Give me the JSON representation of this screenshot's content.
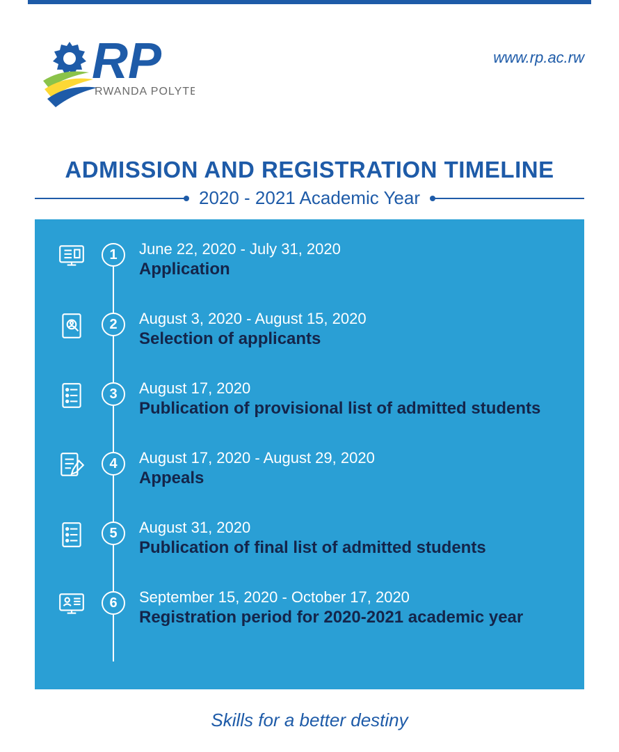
{
  "header": {
    "org_name": "RWANDA POLYTECHNIC",
    "url": "www.rp.ac.rw",
    "logo_colors": {
      "blue": "#1e5ba8",
      "green": "#8bc34a",
      "yellow": "#fdd835"
    }
  },
  "title": {
    "main": "ADMISSION AND REGISTRATION TIMELINE",
    "subtitle": "2020 - 2021 Academic Year"
  },
  "timeline": {
    "background_color": "#2a9fd5",
    "line_color": "#ffffff",
    "label_color": "#14254a",
    "date_color": "#ffffff",
    "items": [
      {
        "num": "1",
        "date": "June 22, 2020 - July 31, 2020",
        "label": "Application",
        "icon": "monitor-form"
      },
      {
        "num": "2",
        "date": "August 3, 2020 - August 15, 2020",
        "label": "Selection of applicants",
        "icon": "search-doc"
      },
      {
        "num": "3",
        "date": "August 17, 2020",
        "label": "Publication of provisional list of admitted students",
        "icon": "list"
      },
      {
        "num": "4",
        "date": "August 17, 2020 - August 29, 2020",
        "label": "Appeals",
        "icon": "edit-doc"
      },
      {
        "num": "5",
        "date": "August 31, 2020",
        "label": "Publication of final list of admitted students",
        "icon": "list"
      },
      {
        "num": "6",
        "date": "September 15, 2020 - October 17, 2020",
        "label": "Registration period for 2020-2021 academic year",
        "icon": "monitor-profile"
      }
    ]
  },
  "tagline": "Skills for a better destiny",
  "colors": {
    "primary": "#1e5ba8",
    "panel": "#2a9fd5",
    "white": "#ffffff",
    "dark_label": "#14254a"
  }
}
